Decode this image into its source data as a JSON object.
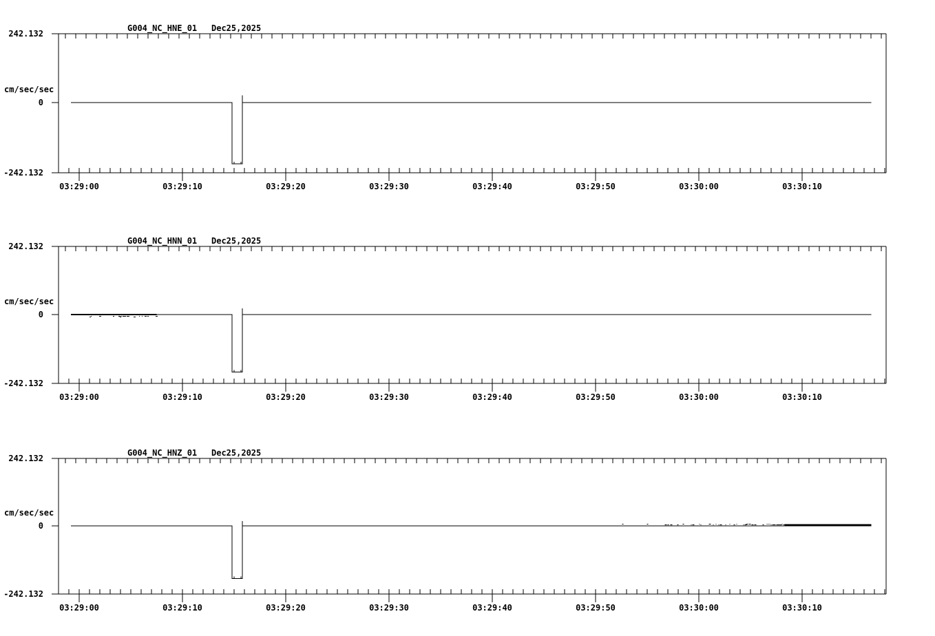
{
  "app": {
    "description": "seismic waveform strip-chart display, three channels",
    "background_color": "#ffffff",
    "trace_color": "#000000"
  },
  "time_axis": {
    "tick_labels": [
      "03:29:00",
      "03:29:10",
      "03:29:20",
      "03:29:30",
      "03:29:40",
      "03:29:50",
      "03:30:00",
      "03:30:10"
    ],
    "minor_tick_seconds": 1,
    "major_tick_seconds": 10
  },
  "chart_data": [
    {
      "type": "line",
      "title": "G004_NC_HNE_01",
      "date_label": "Dec25,2025",
      "ylabel": "cm/sec/sec",
      "ylim": [
        -242.132,
        242.132
      ],
      "y_tick_labels": [
        "242.132",
        "0",
        "-242.132"
      ],
      "x_tick_labels": [
        "03:29:00",
        "03:29:10",
        "03:29:20",
        "03:29:30",
        "03:29:40",
        "03:29:50",
        "03:30:00",
        "03:30:10"
      ],
      "x_start_time": "03:28:59.2",
      "x_end_time": "03:30:16.7",
      "baseline_value": 0,
      "points_t_value": [
        [
          -0.8,
          0
        ],
        [
          14.8,
          0
        ],
        [
          14.8,
          -216
        ],
        [
          15.8,
          -216
        ],
        [
          15.8,
          26
        ],
        [
          15.8,
          0
        ],
        [
          76.7,
          0
        ]
      ],
      "event": {
        "description": "square dropout pulse to -216 then spike to +26",
        "t_start": 14.8,
        "t_end": 15.8
      },
      "noise": null
    },
    {
      "type": "line",
      "title": "G004_NC_HNN_01",
      "date_label": "Dec25,2025",
      "ylabel": "cm/sec/sec",
      "ylim": [
        -242.132,
        242.132
      ],
      "y_tick_labels": [
        "242.132",
        "0",
        "-242.132"
      ],
      "x_tick_labels": [
        "03:29:00",
        "03:29:10",
        "03:29:20",
        "03:29:30",
        "03:29:40",
        "03:29:50",
        "03:30:00",
        "03:30:10"
      ],
      "x_start_time": "03:28:59.2",
      "x_end_time": "03:30:16.7",
      "baseline_value": 0,
      "points_t_value": [
        [
          -0.8,
          0
        ],
        [
          14.8,
          0
        ],
        [
          14.8,
          -204
        ],
        [
          15.8,
          -204
        ],
        [
          15.8,
          22
        ],
        [
          15.8,
          0
        ],
        [
          76.7,
          0
        ]
      ],
      "event": {
        "description": "square dropout pulse to -204 then spike to +22",
        "t_start": 14.8,
        "t_end": 15.8
      },
      "noise": {
        "t_start": -0.8,
        "t_end": 7.3,
        "side": "below",
        "style": "thickened baseline with scattered dots just below zero"
      }
    },
    {
      "type": "line",
      "title": "G004_NC_HNZ_01",
      "date_label": "Dec25,2025",
      "ylabel": "cm/sec/sec",
      "ylim": [
        -242.132,
        242.132
      ],
      "y_tick_labels": [
        "242.132",
        "0",
        "-242.132"
      ],
      "x_tick_labels": [
        "03:29:00",
        "03:29:10",
        "03:29:20",
        "03:29:30",
        "03:29:40",
        "03:29:50",
        "03:30:00",
        "03:30:10"
      ],
      "x_start_time": "03:28:59.2",
      "x_end_time": "03:30:16.7",
      "baseline_value": 0,
      "points_t_value": [
        [
          -0.8,
          0
        ],
        [
          14.8,
          0
        ],
        [
          14.8,
          -189
        ],
        [
          15.8,
          -189
        ],
        [
          15.8,
          17
        ],
        [
          15.8,
          0
        ],
        [
          76.7,
          0
        ]
      ],
      "event": {
        "description": "square dropout pulse to -189 then spike to +17",
        "t_start": 14.8,
        "t_end": 15.8
      },
      "noise": {
        "t_start": 50.7,
        "t_solid_from": 68.3,
        "t_end": 76.7,
        "side": "above",
        "style": "sparse dots above zero growing denser, then solid thickened trace to end"
      }
    }
  ]
}
